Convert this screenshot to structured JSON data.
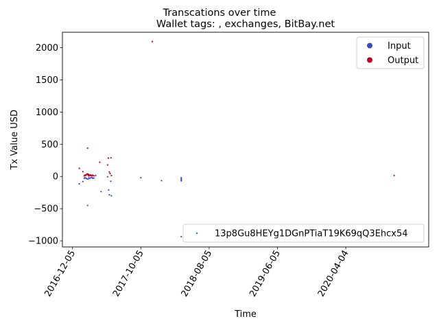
{
  "chart_data": {
    "type": "scatter",
    "title": "Transcations over time",
    "subtitle": "Wallet tags: , exchanges, BitBay.net",
    "xlabel": "Time",
    "ylabel": "Tx Value USD",
    "x_type": "date",
    "xlim": [
      "2016-10-21",
      "2021-04-08"
    ],
    "ylim": [
      -1095,
      2240
    ],
    "x_ticks": [
      "2016-12-05",
      "2017-10-05",
      "2018-08-05",
      "2019-06-05",
      "2020-04-04"
    ],
    "y_ticks": [
      -1000,
      -500,
      0,
      500,
      1000,
      1500,
      2000
    ],
    "grid": false,
    "legend": {
      "placement": "upper right",
      "entries": [
        {
          "label": "Input",
          "color": "#3b4cc0"
        },
        {
          "label": "Output",
          "color": "#b40426"
        }
      ]
    },
    "legend2": {
      "placement": "lower right",
      "label": "13p8Gu8HEYg1DGnPTiaT19K69qQ3Ehcx54",
      "color": "#1f77b4"
    },
    "series": [
      {
        "name": "Input",
        "color": "#3b4cc0",
        "points": [
          [
            "2017-01-04",
            -115
          ],
          [
            "2017-01-20",
            -80
          ],
          [
            "2017-01-26",
            -30
          ],
          [
            "2017-01-29",
            -20
          ],
          [
            "2017-02-02",
            -25
          ],
          [
            "2017-02-06",
            -35
          ],
          [
            "2017-02-10",
            -450
          ],
          [
            "2017-02-12",
            -40
          ],
          [
            "2017-02-16",
            -20
          ],
          [
            "2017-02-19",
            -30
          ],
          [
            "2017-02-25",
            -20
          ],
          [
            "2017-03-02",
            -15
          ],
          [
            "2017-03-05",
            -30
          ],
          [
            "2017-03-10",
            -25
          ],
          [
            "2017-04-11",
            -235
          ],
          [
            "2017-05-10",
            -5
          ],
          [
            "2017-05-15",
            -210
          ],
          [
            "2017-05-18",
            -285
          ],
          [
            "2017-05-24",
            -75
          ],
          [
            "2017-05-27",
            -300
          ],
          [
            "2017-10-05",
            -20
          ],
          [
            "2018-01-05",
            -65
          ],
          [
            "2018-04-03",
            -935
          ],
          [
            "2018-04-03",
            -20
          ],
          [
            "2018-04-03",
            -35
          ],
          [
            "2018-04-03",
            -50
          ],
          [
            "2018-04-03",
            -60
          ],
          [
            "2018-04-03",
            -70
          ]
        ]
      },
      {
        "name": "Output",
        "color": "#b40426",
        "points": [
          [
            "2017-01-04",
            125
          ],
          [
            "2017-01-20",
            75
          ],
          [
            "2017-01-26",
            10
          ],
          [
            "2017-01-29",
            20
          ],
          [
            "2017-02-01",
            15
          ],
          [
            "2017-02-03",
            25
          ],
          [
            "2017-02-06",
            30
          ],
          [
            "2017-02-08",
            40
          ],
          [
            "2017-02-10",
            440
          ],
          [
            "2017-02-12",
            20
          ],
          [
            "2017-02-14",
            35
          ],
          [
            "2017-02-16",
            10
          ],
          [
            "2017-02-18",
            20
          ],
          [
            "2017-02-21",
            15
          ],
          [
            "2017-02-24",
            25
          ],
          [
            "2017-02-27",
            10
          ],
          [
            "2017-03-02",
            15
          ],
          [
            "2017-03-05",
            20
          ],
          [
            "2017-03-10",
            10
          ],
          [
            "2017-03-18",
            15
          ],
          [
            "2017-04-05",
            220
          ],
          [
            "2017-05-10",
            180
          ],
          [
            "2017-05-13",
            285
          ],
          [
            "2017-05-18",
            70
          ],
          [
            "2017-05-21",
            45
          ],
          [
            "2017-05-25",
            290
          ],
          [
            "2017-05-27",
            15
          ],
          [
            "2017-11-25",
            2095
          ],
          [
            "2020-11-05",
            15
          ]
        ]
      },
      {
        "name": "13p8Gu8HEYg1DGnPTiaT19K69qQ3Ehcx54",
        "color": "#1f77b4",
        "points": []
      }
    ]
  }
}
